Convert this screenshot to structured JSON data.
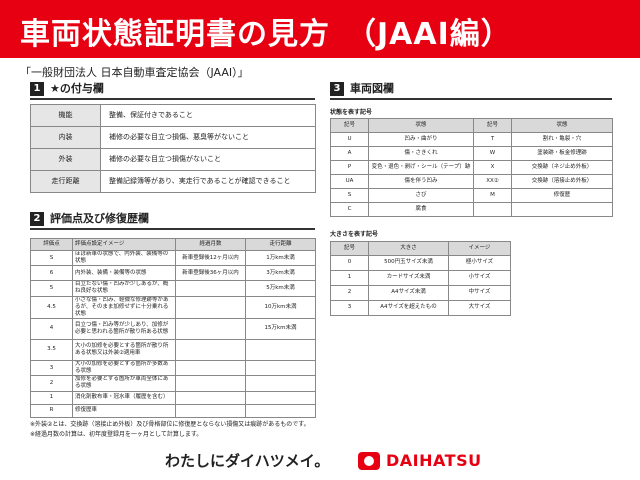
{
  "header": {
    "title": "車両状態証明書の見方　（JAAI編）",
    "subtitle": "「一般財団法人 日本自動車査定協会（JAAI）」"
  },
  "section1": {
    "number": "1",
    "title": "★の付与欄",
    "rows": [
      [
        "機能",
        "整備、保証付きであること"
      ],
      [
        "内装",
        "補修の必要な目立つ損傷、悪臭等がないこと"
      ],
      [
        "外装",
        "補修の必要な目立つ損傷がないこと"
      ],
      [
        "走行距離",
        "整備記録簿等があり、実走行であることが確認できること"
      ]
    ]
  },
  "section2": {
    "number": "2",
    "title": "評価点及び修復歴欄",
    "columns": [
      "評価点",
      "評価点設定イメージ",
      "経過月数",
      "走行距離"
    ],
    "rows": [
      [
        "S",
        "ほぼ新車の状態で、内外装、装備等の状態",
        "新車登録後12ヶ月以内",
        "1万km未満"
      ],
      [
        "6",
        "内外装、装備・装備等の状態",
        "新車登録後36ヶ月以内",
        "3万km未満"
      ],
      [
        "5",
        "目立たない傷・凹みが少しあるが、概ね良好な状態",
        null,
        "5万km未満"
      ],
      [
        "4.5",
        "小さな傷・凹み、軽微な修理跡等があるが、そのまま加修せずに十分乗れる状態",
        null,
        "10万km未満"
      ],
      [
        "4",
        "目立つ傷・凹み等が少しあり、加修が必要と思われる箇所が散り所ある状態",
        null,
        "15万km未満"
      ],
      [
        "3.5",
        "大小の加修を必要とする箇所が散り所ある状態又は外装②適用車",
        null,
        null
      ],
      [
        "3",
        "大小の加修を必要とする箇所が多数ある状態",
        null,
        null
      ],
      [
        "2",
        "加修を必要とする箇所が車両全体にある状態",
        null,
        null
      ],
      [
        "1",
        "消化剤散布車・冠水車（履歴を含む）",
        null,
        null
      ],
      [
        "R",
        "修復歴車",
        null,
        null
      ]
    ]
  },
  "section3": {
    "number": "3",
    "title": "車両図欄",
    "status": {
      "label": "状態を表す記号",
      "columns": [
        "記号",
        "状態",
        "記号",
        "状態"
      ],
      "rows": [
        [
          "U",
          "凹み・曲がり",
          "T",
          "割れ・亀裂・穴"
        ],
        [
          "A",
          "傷・さきくれ",
          "W",
          "塗装跡・板金修理跡"
        ],
        [
          "P",
          "変色・退色・剥げ・シール（テープ）跡",
          "X",
          "交換跡（ネジ止め外板）"
        ],
        [
          "UA",
          "傷を伴う凹み",
          "XX②",
          "交換跡（溶接止め外板）"
        ],
        [
          "S",
          "さび",
          "M",
          "修復歴"
        ],
        [
          "C",
          "腐食",
          null,
          null
        ]
      ]
    },
    "size": {
      "label": "大きさを表す記号",
      "columns": [
        "記号",
        "大きさ",
        "イメージ"
      ],
      "rows": [
        [
          "0",
          "500円玉サイズ未満",
          "極小サイズ"
        ],
        [
          "1",
          "カードサイズ未満",
          "小サイズ"
        ],
        [
          "2",
          "A4サイズ未満",
          "中サイズ"
        ],
        [
          "3",
          "A4サイズを超えたもの",
          "大サイズ"
        ]
      ]
    }
  },
  "notes": [
    "※外装②とは、交換跡（溶接止め外板）及び骨格部位に修復歴とならない損傷又は痕跡があるものです。",
    "※経過月数の計算は、初年度登録月を一ヶ月として計算します。"
  ],
  "footer": {
    "slogan": "わたしにダイハツメイ。",
    "brand": "DAIHATSU"
  }
}
